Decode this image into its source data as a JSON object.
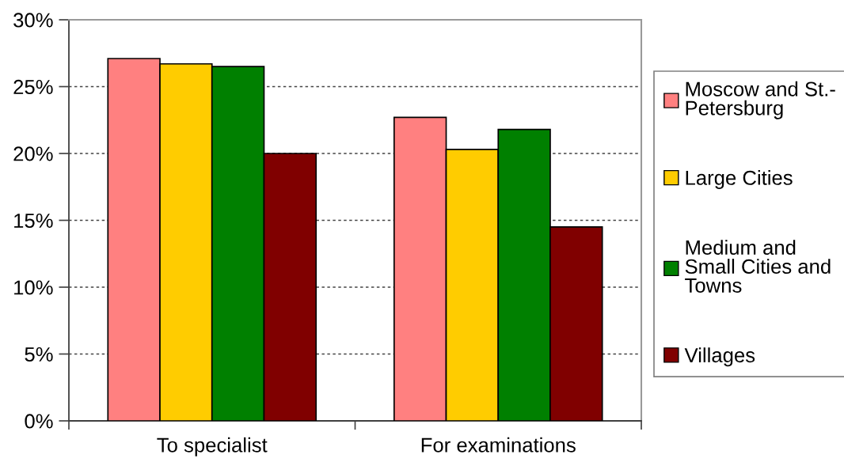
{
  "chart_data": {
    "type": "bar",
    "categories": [
      "To specialist",
      "For examinations"
    ],
    "series": [
      {
        "name": "Moscow and St.-Petersburg",
        "color": "#ff8080",
        "values": [
          27.1,
          22.7
        ]
      },
      {
        "name": "Large Cities",
        "color": "#ffcc00",
        "values": [
          26.7,
          20.3
        ]
      },
      {
        "name": "Medium and Small Cities and Towns",
        "color": "#008000",
        "values": [
          26.5,
          21.8
        ]
      },
      {
        "name": "Villages",
        "color": "#800000",
        "values": [
          20.0,
          14.5
        ]
      }
    ],
    "ylim": [
      0,
      30
    ],
    "yticks": [
      {
        "value": 0,
        "label": "0%"
      },
      {
        "value": 5,
        "label": "5%"
      },
      {
        "value": 10,
        "label": "10%"
      },
      {
        "value": 15,
        "label": "15%"
      },
      {
        "value": 20,
        "label": "20%"
      },
      {
        "value": 25,
        "label": "25%"
      },
      {
        "value": 30,
        "label": "30%"
      }
    ],
    "grid": "y",
    "legend": "right"
  }
}
